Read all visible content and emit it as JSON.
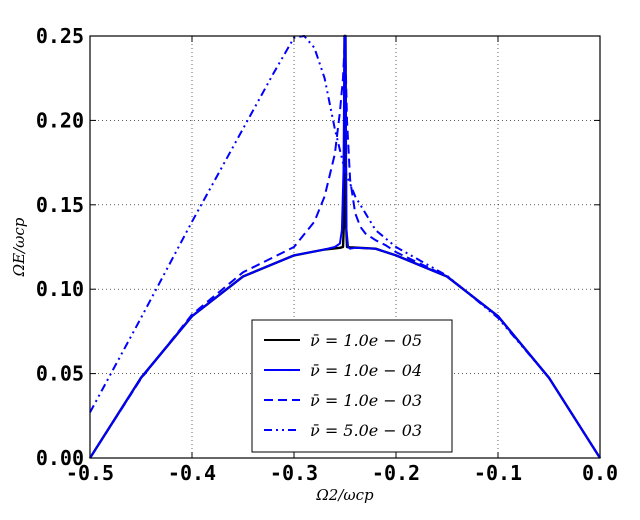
{
  "chart_data": {
    "type": "line",
    "xlabel": "Ω2/ωcp",
    "ylabel": "ΩE/ωcp",
    "xlim": [
      -0.5,
      0.0
    ],
    "ylim": [
      0.0,
      0.25
    ],
    "grid": true,
    "legend_position": "bottom-center",
    "xticks": [
      "-0.5",
      "-0.4",
      "-0.3",
      "-0.2",
      "-0.1",
      "0.0"
    ],
    "yticks": [
      "0.00",
      "0.05",
      "0.10",
      "0.15",
      "0.20",
      "0.25"
    ],
    "series": [
      {
        "name": "ν̄ = 1.0e − 05",
        "color": "#000000",
        "dash": "solid",
        "x": [
          -0.5,
          -0.45,
          -0.4,
          -0.35,
          -0.3,
          -0.27,
          -0.255,
          -0.252,
          -0.251,
          -0.2505,
          -0.2495,
          -0.249,
          -0.248,
          -0.245,
          -0.22,
          -0.2,
          -0.15,
          -0.1,
          -0.05,
          0.0
        ],
        "y": [
          0.0,
          0.0475,
          0.084,
          0.1075,
          0.12,
          0.1235,
          0.1245,
          0.125,
          0.14,
          0.25,
          0.25,
          0.14,
          0.125,
          0.1248,
          0.124,
          0.12,
          0.1075,
          0.084,
          0.0475,
          0.0
        ]
      },
      {
        "name": "ν̄ = 1.0e − 04",
        "color": "#0000ff",
        "dash": "solid",
        "x": [
          -0.5,
          -0.45,
          -0.4,
          -0.35,
          -0.3,
          -0.27,
          -0.26,
          -0.255,
          -0.253,
          -0.2515,
          -0.2505,
          -0.2495,
          -0.2485,
          -0.247,
          -0.245,
          -0.24,
          -0.22,
          -0.2,
          -0.15,
          -0.1,
          -0.05,
          0.0
        ],
        "y": [
          0.0,
          0.0475,
          0.084,
          0.1075,
          0.12,
          0.1235,
          0.125,
          0.127,
          0.135,
          0.17,
          0.25,
          0.25,
          0.135,
          0.125,
          0.124,
          0.1245,
          0.124,
          0.12,
          0.1075,
          0.084,
          0.0475,
          0.0
        ]
      },
      {
        "name": "ν̄ = 1.0e − 03",
        "color": "#0000ff",
        "dash": "dashed",
        "x": [
          -0.5,
          -0.45,
          -0.4,
          -0.35,
          -0.3,
          -0.28,
          -0.27,
          -0.26,
          -0.255,
          -0.252,
          -0.25,
          -0.248,
          -0.245,
          -0.24,
          -0.235,
          -0.23,
          -0.22,
          -0.21,
          -0.2,
          -0.15,
          -0.1,
          -0.05,
          0.0
        ],
        "y": [
          0.0,
          0.047,
          0.085,
          0.11,
          0.125,
          0.14,
          0.155,
          0.18,
          0.205,
          0.225,
          0.25,
          0.2,
          0.165,
          0.145,
          0.137,
          0.133,
          0.129,
          0.126,
          0.122,
          0.1075,
          0.084,
          0.0475,
          0.0
        ]
      },
      {
        "name": "ν̄ = 5.0e − 03",
        "color": "#0000ff",
        "dash": "dashdotdot",
        "x": [
          -0.5,
          -0.45,
          -0.4,
          -0.35,
          -0.32,
          -0.3,
          -0.29,
          -0.28,
          -0.27,
          -0.26,
          -0.25,
          -0.24,
          -0.23,
          -0.22,
          -0.2,
          -0.15,
          -0.1,
          -0.05,
          0.0
        ],
        "y": [
          0.027,
          0.083,
          0.14,
          0.195,
          0.228,
          0.249,
          0.25,
          0.243,
          0.225,
          0.195,
          0.17,
          0.155,
          0.145,
          0.135,
          0.125,
          0.108,
          0.083,
          0.0475,
          0.0
        ]
      }
    ]
  }
}
